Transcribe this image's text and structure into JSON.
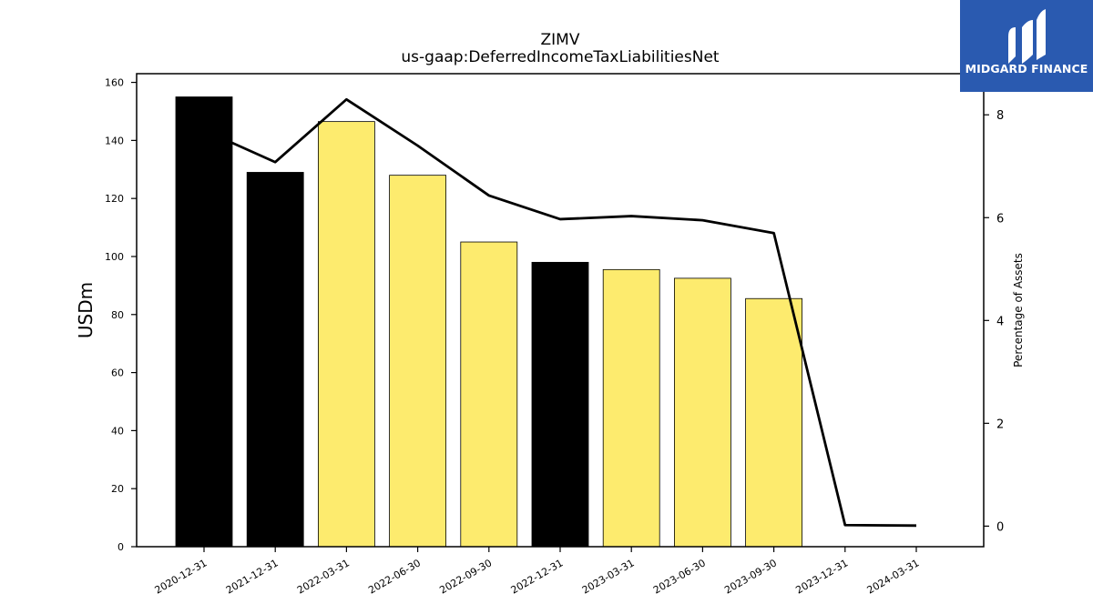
{
  "brand": {
    "name": "MIDGARD FINANCE",
    "color": "#2a5ab0"
  },
  "chart_data": {
    "type": "bar",
    "title": "ZIMV",
    "subtitle": "us-gaap:DeferredIncomeTaxLiabilitiesNet",
    "ylabel": "USDm",
    "y2label": "Percentage of Assets",
    "ylim": [
      0,
      163
    ],
    "y2lim": [
      -0.4,
      8.8
    ],
    "yticks": [
      0,
      20,
      40,
      60,
      80,
      100,
      120,
      140,
      160
    ],
    "y2ticks": [
      0,
      2,
      4,
      6,
      8
    ],
    "categories": [
      "2020-12-31",
      "2021-12-31",
      "2022-03-31",
      "2022-06-30",
      "2022-09-30",
      "2022-12-31",
      "2023-03-31",
      "2023-06-30",
      "2023-09-30",
      "2023-12-31",
      "2024-03-31"
    ],
    "series": [
      {
        "type": "bar",
        "values": [
          155,
          129,
          146.5,
          128,
          105,
          98,
          95.5,
          92.5,
          85.5,
          null,
          null
        ],
        "colors": [
          "#000000",
          "#000000",
          "#fdeb6e",
          "#fdeb6e",
          "#fdeb6e",
          "#000000",
          "#fdeb6e",
          "#fdeb6e",
          "#fdeb6e",
          null,
          null
        ]
      },
      {
        "type": "line",
        "axis": "right",
        "color": "#000000",
        "values": [
          7.7,
          7.08,
          8.3,
          7.4,
          6.43,
          5.97,
          6.03,
          5.95,
          5.7,
          0.02,
          0.01
        ]
      }
    ],
    "grid": false,
    "legend": "none"
  }
}
